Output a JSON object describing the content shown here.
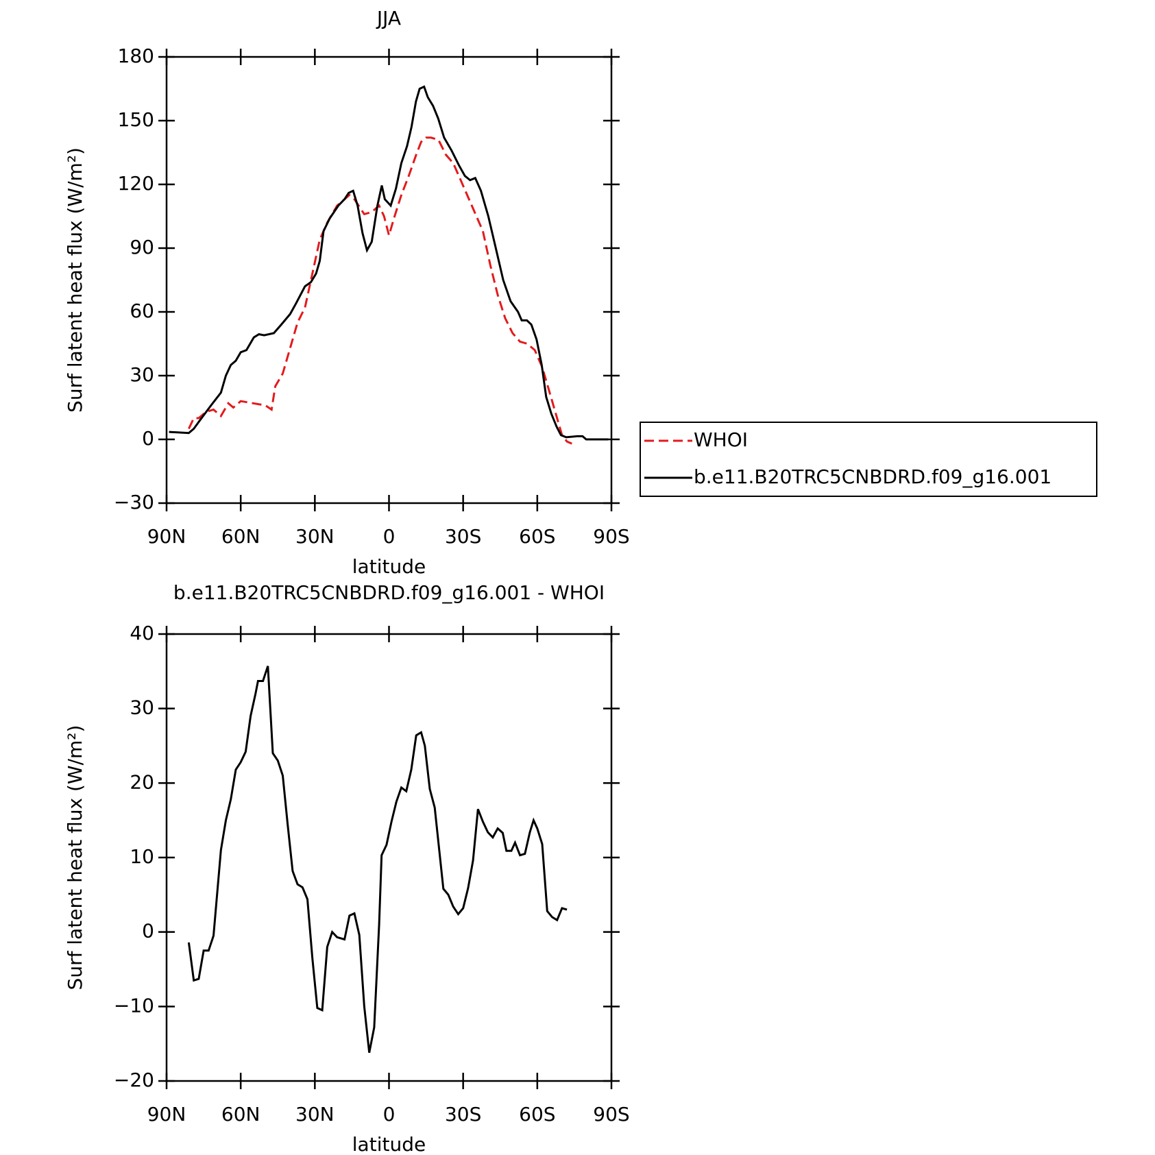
{
  "chart_data": [
    {
      "type": "line",
      "title": "JJA",
      "xlabel": "latitude",
      "ylabel": "Surf latent heat flux (W/m²)",
      "xlim": [
        90,
        -90
      ],
      "xticks": [
        {
          "value": 90,
          "label": "90N"
        },
        {
          "value": 60,
          "label": "60N"
        },
        {
          "value": 30,
          "label": "30N"
        },
        0,
        {
          "value": -30,
          "label": "30S"
        },
        {
          "value": -60,
          "label": "60S"
        },
        {
          "value": -90,
          "label": "90S"
        }
      ],
      "ylim": [
        -30,
        180
      ],
      "yticks": [
        -30,
        0,
        30,
        60,
        90,
        120,
        150,
        180
      ],
      "legend": "right",
      "series": [
        {
          "name": "WHOI",
          "color": "#e41a1c",
          "linestyle": "dashed",
          "x": [
            81,
            79,
            77,
            74,
            71,
            68,
            65,
            63,
            60,
            55,
            50,
            47.5,
            46,
            43,
            40,
            37,
            34,
            31,
            28,
            25,
            21,
            18,
            16,
            14,
            10,
            7,
            4,
            2,
            0,
            -2,
            -5,
            -8,
            -11,
            -13,
            -15,
            -17,
            -20,
            -23,
            -26,
            -29,
            -32,
            -35,
            -38,
            -41,
            -44,
            -47,
            -50,
            -53,
            -56,
            -59,
            -62,
            -65,
            -67.5,
            -70,
            -72,
            -74
          ],
          "values": [
            5,
            10,
            10,
            13,
            14,
            11,
            17,
            15,
            18,
            17,
            16,
            14,
            25,
            31,
            43,
            55,
            62,
            78,
            94,
            102,
            110,
            113,
            115,
            113,
            106,
            107,
            110,
            105,
            96,
            104,
            115,
            124,
            134,
            140,
            142,
            142,
            141,
            134,
            130,
            122,
            114,
            106,
            98,
            82,
            68,
            57,
            50,
            46,
            45,
            42,
            34,
            22,
            12,
            2,
            -1,
            -2
          ]
        },
        {
          "name": "b.e11.B20TRC5CNBDRD.f09_g16.001",
          "color": "#000000",
          "linestyle": "solid",
          "x": [
            89,
            81,
            79,
            76.5,
            72,
            68,
            66,
            64,
            62,
            60,
            57.7,
            54.7,
            52.6,
            50.5,
            46.6,
            43.6,
            40,
            37.6,
            34,
            31.6,
            29.5,
            28,
            26.5,
            24,
            20.5,
            18,
            16.3,
            14.5,
            12.7,
            10.7,
            8.9,
            7,
            4.7,
            2.9,
            1.7,
            -0.7,
            -2.8,
            -5,
            -7.3,
            -9.1,
            -10.9,
            -12.4,
            -14.2,
            -15.7,
            -17.8,
            -19.9,
            -22.3,
            -25.3,
            -28.3,
            -30.7,
            -32.8,
            -34.9,
            -37.2,
            -40.2,
            -43.2,
            -46.2,
            -49.2,
            -52.2,
            -53.7,
            -55.8,
            -57.6,
            -59.7,
            -61.8,
            -63.6,
            -65.7,
            -67.8,
            -69.6,
            -71.7,
            -76.2,
            -78.3,
            -79.8,
            -88.7
          ],
          "values": [
            3.5,
            3,
            5,
            9,
            16,
            22,
            30,
            35,
            37,
            41,
            42,
            48,
            49.5,
            49,
            50,
            54,
            59,
            64,
            72,
            74,
            78,
            84,
            98,
            104,
            110,
            113,
            116,
            117,
            110,
            97,
            89,
            93,
            110,
            119.5,
            113,
            110,
            118,
            130,
            138,
            147,
            159,
            165,
            166,
            161,
            157,
            151,
            142,
            136,
            129,
            124,
            122,
            123,
            117,
            105,
            90,
            75,
            65,
            60,
            56,
            56,
            54,
            47,
            35,
            20,
            12,
            6,
            2,
            1,
            1.5,
            1.5,
            0,
            0
          ]
        }
      ]
    },
    {
      "type": "line",
      "title": "b.e11.B20TRC5CNBDRD.f09_g16.001 - WHOI",
      "xlabel": "latitude",
      "ylabel": "Surf latent heat flux (W/m²)",
      "xlim": [
        90,
        -90
      ],
      "xticks": [
        {
          "value": 90,
          "label": "90N"
        },
        {
          "value": 60,
          "label": "60N"
        },
        {
          "value": 30,
          "label": "30N"
        },
        0,
        {
          "value": -30,
          "label": "30S"
        },
        {
          "value": -60,
          "label": "60S"
        },
        {
          "value": -90,
          "label": "90S"
        }
      ],
      "ylim": [
        -20,
        40
      ],
      "yticks": [
        -20,
        -10,
        0,
        10,
        20,
        30,
        40
      ],
      "series": [
        {
          "color": "#000000",
          "linestyle": "solid",
          "x": [
            81,
            79,
            77,
            75,
            73,
            71,
            68,
            66,
            64,
            62,
            60,
            58,
            56,
            54,
            53,
            51,
            49,
            47,
            45,
            43,
            41,
            39,
            37,
            35,
            33,
            31,
            29,
            27,
            25,
            23,
            21,
            18,
            16,
            14,
            12,
            10,
            8,
            6,
            4,
            3,
            1,
            -1,
            -3,
            -5,
            -7,
            -9,
            -11,
            -13,
            -14.5,
            -16.5,
            -18.5,
            -22,
            -24,
            -26,
            -28,
            -30,
            -32,
            -34,
            -36,
            -38,
            -40,
            -42,
            -44,
            -46,
            -47.5,
            -49.5,
            -51,
            -53,
            -55,
            -57,
            -58.5,
            -60,
            -62,
            -64,
            -66,
            -68,
            -70,
            -72
          ],
          "values": [
            -1.4,
            -6.5,
            -6.3,
            -2.5,
            -2.5,
            -0.5,
            11,
            15,
            17.8,
            21.8,
            22.8,
            24.2,
            29,
            32,
            33.7,
            33.7,
            35.7,
            24,
            23,
            21,
            14.4,
            8.2,
            6.4,
            6,
            4.4,
            -3.5,
            -10.2,
            -10.5,
            -2,
            0,
            -0.7,
            -1,
            2.2,
            2.5,
            -0.4,
            -10,
            -16.2,
            -12.8,
            1,
            10.3,
            11.7,
            14.8,
            17.5,
            19.4,
            18.9,
            21.8,
            26.4,
            26.8,
            25,
            19.2,
            16.7,
            5.8,
            5,
            3.4,
            2.4,
            3.2,
            5.9,
            9.6,
            16.5,
            14.8,
            13.4,
            12.7,
            13.9,
            13.3,
            10.9,
            10.9,
            12,
            10.3,
            10.5,
            13.4,
            15,
            13.9,
            11.8,
            2.8,
            2,
            1.6,
            3.2,
            3
          ]
        }
      ]
    }
  ]
}
